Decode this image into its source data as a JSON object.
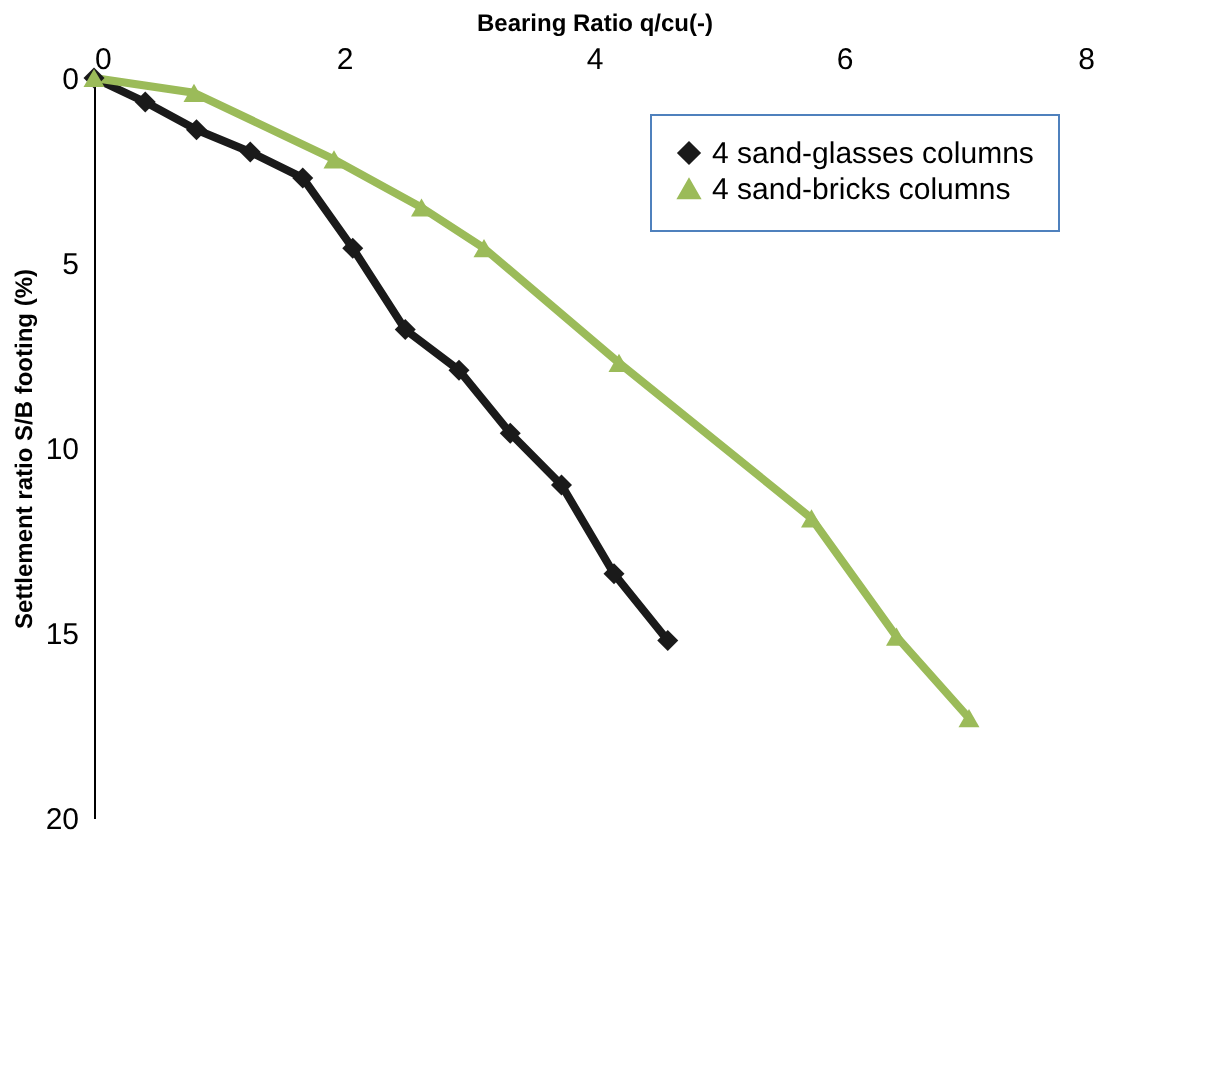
{
  "chart_data": {
    "type": "line",
    "xlabel": "Bearing  Ratio q/cu(-)",
    "ylabel": "Settlement ratio S/B footing (%)",
    "xlim": [
      0,
      8
    ],
    "xticks": [
      0,
      2,
      4,
      6,
      8
    ],
    "ylim": [
      20,
      0
    ],
    "yticks": [
      0,
      5,
      10,
      15,
      20
    ],
    "grid": false,
    "legend": "top right",
    "line_style": "solid",
    "series": [
      {
        "name": "4 sand-glasses columns",
        "color": "#1a1a1a",
        "marker": "diamond",
        "x": [
          0,
          0.41,
          0.82,
          1.25,
          1.67,
          2.07,
          2.49,
          2.92,
          3.33,
          3.74,
          4.16,
          4.59
        ],
        "values": [
          0,
          0.65,
          1.4,
          2.0,
          2.7,
          4.6,
          6.8,
          7.9,
          9.6,
          11.0,
          13.4,
          15.2
        ]
      },
      {
        "name": "4 sand-bricks columns",
        "color": "#9bbb59",
        "marker": "triangle",
        "x": [
          0,
          0.8,
          1.92,
          2.62,
          3.12,
          4.2,
          5.74,
          6.42,
          7.0
        ],
        "values": [
          0,
          0.4,
          2.2,
          3.5,
          4.6,
          7.7,
          11.9,
          15.1,
          17.3
        ]
      }
    ]
  }
}
